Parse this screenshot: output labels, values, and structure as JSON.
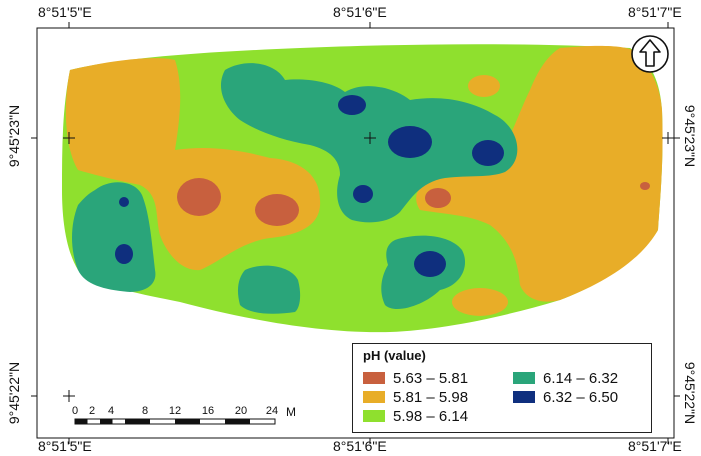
{
  "coordinates": {
    "top": [
      "8°51'5\"E",
      "8°51'6\"E",
      "8°51'7\"E"
    ],
    "bottom": [
      "8°51'5\"E",
      "8°51'6\"E",
      "8°51'7\"E"
    ],
    "left": [
      "9°45'23\"N",
      "9°45'22\"N"
    ],
    "right": [
      "9°45'23\"N",
      "9°45'22\"N"
    ]
  },
  "north_arrow": {
    "icon": "north-arrow-icon"
  },
  "legend": {
    "title": "pH (value)",
    "items": [
      {
        "label": "5.63 – 5.81",
        "color": "#c8603e"
      },
      {
        "label": "5.81 – 5.98",
        "color": "#e8ad28"
      },
      {
        "label": "5.98 – 6.14",
        "color": "#8fe02e"
      },
      {
        "label": "6.14 – 6.32",
        "color": "#2aa57a"
      },
      {
        "label": "6.32 – 6.50",
        "color": "#0f2f7e"
      }
    ]
  },
  "scale_bar": {
    "ticks": [
      "0",
      "2",
      "4",
      "8",
      "12",
      "16",
      "20",
      "24"
    ],
    "unit": "M"
  }
}
